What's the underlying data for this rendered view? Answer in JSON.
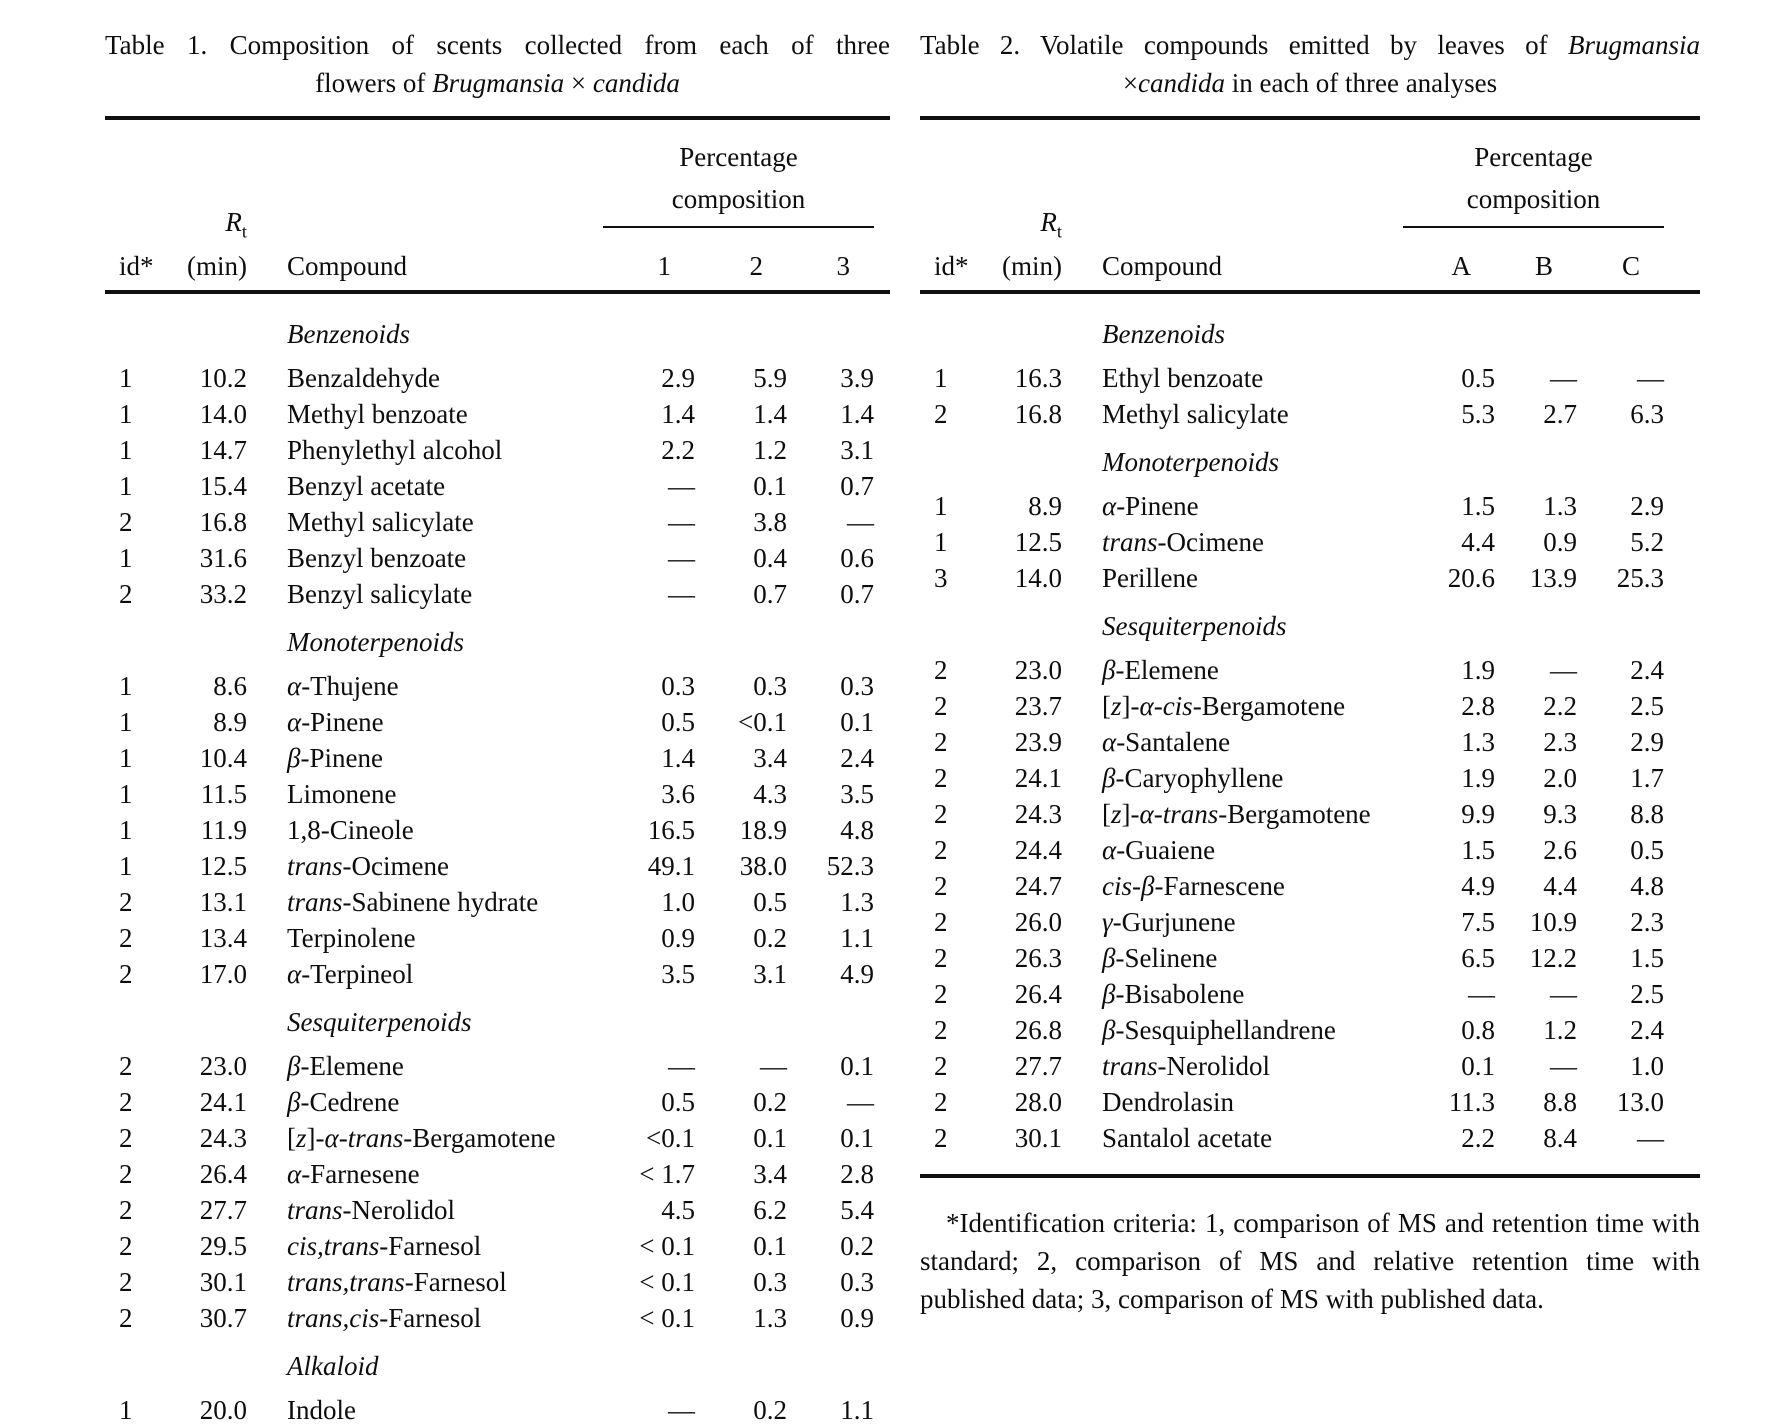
{
  "page": {
    "background": "#ffffff",
    "text_color": "#0d0d0d",
    "rule_color": "#101010"
  },
  "tables": [
    {
      "caption_lines": [
        "Table 1. Composition of scents collected from each of three",
        "flowers of *Brugmansia* × *candida*"
      ],
      "header": {
        "id_label": "id*",
        "rt_symbol": "*R*~t~",
        "rt_unit": "(min)",
        "compound_label": "Compound",
        "group_label_lines": [
          "Percentage",
          "composition"
        ],
        "value_cols": [
          "1",
          "2",
          "3"
        ]
      },
      "sections": [
        {
          "name": "*Benzenoids*",
          "rows": [
            [
              "1",
              "10.2",
              "Benzaldehyde",
              "2.9",
              "5.9",
              "3.9"
            ],
            [
              "1",
              "14.0",
              "Methyl benzoate",
              "1.4",
              "1.4",
              "1.4"
            ],
            [
              "1",
              "14.7",
              "Phenylethyl alcohol",
              "2.2",
              "1.2",
              "3.1"
            ],
            [
              "1",
              "15.4",
              "Benzyl acetate",
              "—",
              "0.1",
              "0.7"
            ],
            [
              "2",
              "16.8",
              "Methyl salicylate",
              "—",
              "3.8",
              "—"
            ],
            [
              "1",
              "31.6",
              "Benzyl benzoate",
              "—",
              "0.4",
              "0.6"
            ],
            [
              "2",
              "33.2",
              "Benzyl salicylate",
              "—",
              "0.7",
              "0.7"
            ]
          ]
        },
        {
          "name": "*Monoterpenoids*",
          "rows": [
            [
              "1",
              "8.6",
              "*α*-Thujene",
              "0.3",
              "0.3",
              "0.3"
            ],
            [
              "1",
              "8.9",
              "*α*-Pinene",
              "0.5",
              "<0.1",
              "0.1"
            ],
            [
              "1",
              "10.4",
              "*β*-Pinene",
              "1.4",
              "3.4",
              "2.4"
            ],
            [
              "1",
              "11.5",
              "Limonene",
              "3.6",
              "4.3",
              "3.5"
            ],
            [
              "1",
              "11.9",
              "1,8-Cineole",
              "16.5",
              "18.9",
              "4.8"
            ],
            [
              "1",
              "12.5",
              "*trans*-Ocimene",
              "49.1",
              "38.0",
              "52.3"
            ],
            [
              "2",
              "13.1",
              "*trans*-Sabinene hydrate",
              "1.0",
              "0.5",
              "1.3"
            ],
            [
              "2",
              "13.4",
              "Terpinolene",
              "0.9",
              "0.2",
              "1.1"
            ],
            [
              "2",
              "17.0",
              "*α*-Terpineol",
              "3.5",
              "3.1",
              "4.9"
            ]
          ]
        },
        {
          "name": "*Sesquiterpenoids*",
          "rows": [
            [
              "2",
              "23.0",
              "*β*-Elemene",
              "—",
              "—",
              "0.1"
            ],
            [
              "2",
              "24.1",
              "*β*-Cedrene",
              "0.5",
              "0.2",
              "—"
            ],
            [
              "2",
              "24.3",
              "[*z*]-*α*-*trans*-Bergamotene",
              "<0.1",
              "0.1",
              "0.1"
            ],
            [
              "2",
              "26.4",
              "*α*-Farnesene",
              "< 1.7",
              "3.4",
              "2.8"
            ],
            [
              "2",
              "27.7",
              "*trans*-Nerolidol",
              "4.5",
              "6.2",
              "5.4"
            ],
            [
              "2",
              "29.5",
              "*cis,trans*-Farnesol",
              "< 0.1",
              "0.1",
              "0.2"
            ],
            [
              "2",
              "30.1",
              "*trans,trans*-Farnesol",
              "< 0.1",
              "0.3",
              "0.3"
            ],
            [
              "2",
              "30.7",
              "*trans,cis*-Farnesol",
              "< 0.1",
              "1.3",
              "0.9"
            ]
          ]
        },
        {
          "name": "*Alkaloid*",
          "rows": [
            [
              "1",
              "20.0",
              "Indole",
              "—",
              "0.2",
              "1.1"
            ]
          ]
        }
      ],
      "footnote": null
    },
    {
      "caption_lines": [
        "Table 2. Volatile compounds emitted by leaves of *Brugmansia*",
        "×*candida* in each of three analyses"
      ],
      "header": {
        "id_label": "id*",
        "rt_symbol": "*R*~t~",
        "rt_unit": "(min)",
        "compound_label": "Compound",
        "group_label_lines": [
          "Percentage",
          "composition"
        ],
        "value_cols": [
          "A",
          "B",
          "C"
        ]
      },
      "sections": [
        {
          "name": "*Benzenoids*",
          "rows": [
            [
              "1",
              "16.3",
              "Ethyl benzoate",
              "0.5",
              "—",
              "—"
            ],
            [
              "2",
              "16.8",
              "Methyl salicylate",
              "5.3",
              "2.7",
              "6.3"
            ]
          ]
        },
        {
          "name": "*Monoterpenoids*",
          "rows": [
            [
              "1",
              "8.9",
              "*α*-Pinene",
              "1.5",
              "1.3",
              "2.9"
            ],
            [
              "1",
              "12.5",
              "*trans*-Ocimene",
              "4.4",
              "0.9",
              "5.2"
            ],
            [
              "3",
              "14.0",
              "Perillene",
              "20.6",
              "13.9",
              "25.3"
            ]
          ]
        },
        {
          "name": "*Sesquiterpenoids*",
          "rows": [
            [
              "2",
              "23.0",
              "*β*-Elemene",
              "1.9",
              "—",
              "2.4"
            ],
            [
              "2",
              "23.7",
              "[*z*]-*α*-*cis*-Bergamotene",
              "2.8",
              "2.2",
              "2.5"
            ],
            [
              "2",
              "23.9",
              "*α*-Santalene",
              "1.3",
              "2.3",
              "2.9"
            ],
            [
              "2",
              "24.1",
              "*β*-Caryophyllene",
              "1.9",
              "2.0",
              "1.7"
            ],
            [
              "2",
              "24.3",
              "[*z*]-*α*-*trans*-Bergamotene",
              "9.9",
              "9.3",
              "8.8"
            ],
            [
              "2",
              "24.4",
              "*α*-Guaiene",
              "1.5",
              "2.6",
              "0.5"
            ],
            [
              "2",
              "24.7",
              "*cis*-*β*-Farnescene",
              "4.9",
              "4.4",
              "4.8"
            ],
            [
              "2",
              "26.0",
              "*γ*-Gurjunene",
              "7.5",
              "10.9",
              "2.3"
            ],
            [
              "2",
              "26.3",
              "*β*-Selinene",
              "6.5",
              "12.2",
              "1.5"
            ],
            [
              "2",
              "26.4",
              "*β*-Bisabolene",
              "—",
              "—",
              "2.5"
            ],
            [
              "2",
              "26.8",
              "*β*-Sesquiphellandrene",
              "0.8",
              "1.2",
              "2.4"
            ],
            [
              "2",
              "27.7",
              "*trans*-Nerolidol",
              "0.1",
              "—",
              "1.0"
            ],
            [
              "2",
              "28.0",
              "Dendrolasin",
              "11.3",
              "8.8",
              "13.0"
            ],
            [
              "2",
              "30.1",
              "Santalol acetate",
              "2.2",
              "8.4",
              "—"
            ]
          ]
        }
      ],
      "footnote": "*Identification criteria: 1, comparison of MS and retention time with standard; 2, comparison of MS and relative retention time with published data; 3, comparison of MS with published data."
    }
  ]
}
